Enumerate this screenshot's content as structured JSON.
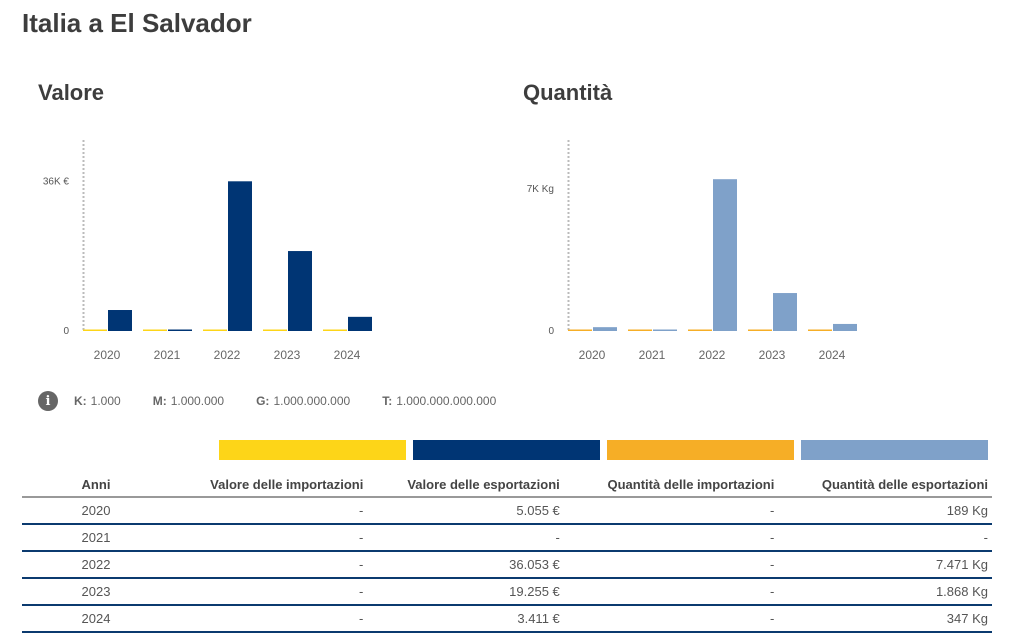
{
  "page_title": "Italia a El Salvador",
  "colors": {
    "import_value": "#fdd518",
    "export_value": "#003574",
    "import_quantity": "#f6ae26",
    "export_quantity": "#7fa1c9"
  },
  "chart_data": [
    {
      "type": "bar",
      "title": "Valore",
      "categories": [
        "2020",
        "2021",
        "2022",
        "2023",
        "2024"
      ],
      "series": [
        {
          "name": "Valore delle importazioni",
          "values": [
            0,
            0,
            0,
            0,
            0
          ],
          "color": "#fdd518"
        },
        {
          "name": "Valore delle esportazioni",
          "values": [
            5055,
            0,
            36053,
            19255,
            3411
          ],
          "color": "#003574"
        }
      ],
      "yticks": [
        {
          "value": 0,
          "label": "0"
        },
        {
          "value": 36000,
          "label": "36K €"
        }
      ],
      "ylim": [
        0,
        46000
      ],
      "grid": false
    },
    {
      "type": "bar",
      "title": "Quantità",
      "categories": [
        "2020",
        "2021",
        "2022",
        "2023",
        "2024"
      ],
      "series": [
        {
          "name": "Quantità delle importazioni",
          "values": [
            0,
            0,
            0,
            0,
            0
          ],
          "color": "#f6ae26"
        },
        {
          "name": "Quantità delle esportazioni",
          "values": [
            189,
            0,
            7471,
            1868,
            347
          ],
          "color": "#7fa1c9"
        }
      ],
      "yticks": [
        {
          "value": 0,
          "label": "0"
        },
        {
          "value": 7000,
          "label": "7K Kg"
        }
      ],
      "ylim": [
        0,
        9400
      ],
      "grid": false
    }
  ],
  "units_legend": [
    {
      "key": "K:",
      "value": "1.000"
    },
    {
      "key": "M:",
      "value": "1.000.000"
    },
    {
      "key": "G:",
      "value": "1.000.000.000"
    },
    {
      "key": "T:",
      "value": "1.000.000.000.000"
    }
  ],
  "table": {
    "headers": [
      "Anni",
      "Valore delle importazioni",
      "Valore delle esportazioni",
      "Quantità delle importazioni",
      "Quantità delle esportazioni"
    ],
    "rows": [
      [
        "2020",
        "-",
        "5.055 €",
        "-",
        "189 Kg"
      ],
      [
        "2021",
        "-",
        "-",
        "-",
        "-"
      ],
      [
        "2022",
        "-",
        "36.053 €",
        "-",
        "7.471 Kg"
      ],
      [
        "2023",
        "-",
        "19.255 €",
        "-",
        "1.868 Kg"
      ],
      [
        "2024",
        "-",
        "3.411 €",
        "-",
        "347 Kg"
      ]
    ]
  }
}
